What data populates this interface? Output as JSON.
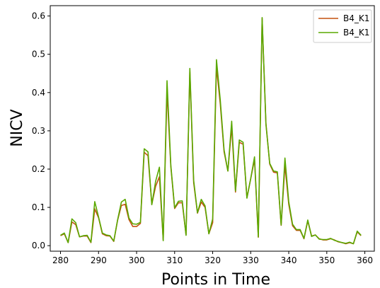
{
  "chart_data": {
    "type": "line",
    "xlabel": "Points in Time",
    "ylabel": "NICV",
    "xlim": [
      277.3,
      362.5
    ],
    "ylim": [
      -0.0145,
      0.627
    ],
    "xticks": [
      280,
      290,
      300,
      310,
      320,
      330,
      340,
      350,
      360
    ],
    "yticks": [
      0.0,
      0.1,
      0.2,
      0.3,
      0.4,
      0.5,
      0.6
    ],
    "ytick_labels": [
      "0.0",
      "0.1",
      "0.2",
      "0.3",
      "0.4",
      "0.5",
      "0.6"
    ],
    "grid": false,
    "legend_position": "top-right",
    "x": [
      280,
      281,
      282,
      283,
      284,
      285,
      286,
      287,
      288,
      289,
      290,
      291,
      292,
      293,
      294,
      295,
      296,
      297,
      298,
      299,
      300,
      301,
      302,
      303,
      304,
      305,
      306,
      307,
      308,
      309,
      310,
      311,
      312,
      313,
      314,
      315,
      316,
      317,
      318,
      319,
      320,
      321,
      322,
      323,
      324,
      325,
      326,
      327,
      328,
      329,
      330,
      331,
      332,
      333,
      334,
      335,
      336,
      337,
      338,
      339,
      340,
      341,
      342,
      343,
      344,
      345,
      346,
      347,
      348,
      349,
      350,
      351,
      352,
      353,
      354,
      355,
      356,
      357,
      358,
      359
    ],
    "series": [
      {
        "name": "B4_K1",
        "color": "#c4500f",
        "values": [
          0.026,
          0.031,
          0.008,
          0.062,
          0.055,
          0.023,
          0.025,
          0.025,
          0.008,
          0.096,
          0.073,
          0.031,
          0.026,
          0.025,
          0.011,
          0.066,
          0.105,
          0.108,
          0.068,
          0.05,
          0.05,
          0.058,
          0.244,
          0.235,
          0.108,
          0.155,
          0.18,
          0.015,
          0.405,
          0.206,
          0.097,
          0.112,
          0.112,
          0.028,
          0.455,
          0.165,
          0.085,
          0.114,
          0.1,
          0.031,
          0.06,
          0.467,
          0.37,
          0.245,
          0.195,
          0.31,
          0.14,
          0.27,
          0.265,
          0.125,
          0.175,
          0.225,
          0.022,
          0.594,
          0.32,
          0.213,
          0.192,
          0.19,
          0.053,
          0.21,
          0.108,
          0.052,
          0.04,
          0.04,
          0.018,
          0.065,
          0.025,
          0.028,
          0.018,
          0.015,
          0.015,
          0.018,
          0.015,
          0.01,
          0.008,
          0.005,
          0.008,
          0.005,
          0.036,
          0.026
        ]
      },
      {
        "name": "B4_K1",
        "color": "#5aa800",
        "values": [
          0.027,
          0.033,
          0.008,
          0.07,
          0.06,
          0.023,
          0.026,
          0.027,
          0.009,
          0.115,
          0.075,
          0.033,
          0.028,
          0.026,
          0.012,
          0.067,
          0.114,
          0.121,
          0.072,
          0.057,
          0.056,
          0.061,
          0.253,
          0.245,
          0.107,
          0.168,
          0.205,
          0.013,
          0.431,
          0.21,
          0.099,
          0.116,
          0.117,
          0.027,
          0.463,
          0.171,
          0.086,
          0.121,
          0.104,
          0.031,
          0.07,
          0.486,
          0.38,
          0.25,
          0.195,
          0.325,
          0.143,
          0.276,
          0.27,
          0.124,
          0.175,
          0.232,
          0.023,
          0.596,
          0.317,
          0.215,
          0.195,
          0.193,
          0.054,
          0.229,
          0.115,
          0.056,
          0.042,
          0.042,
          0.019,
          0.067,
          0.024,
          0.028,
          0.017,
          0.016,
          0.016,
          0.019,
          0.014,
          0.011,
          0.008,
          0.006,
          0.009,
          0.005,
          0.038,
          0.027
        ]
      }
    ]
  }
}
